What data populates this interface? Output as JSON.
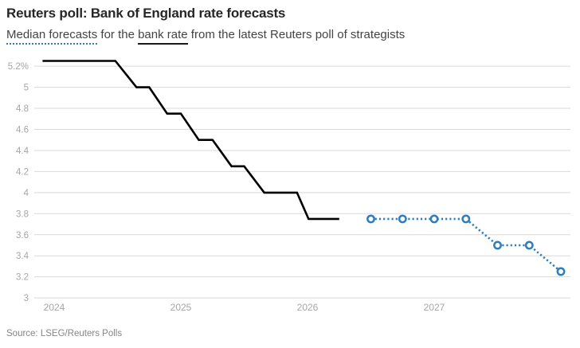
{
  "header": {
    "title": "Reuters poll: Bank of England rate forecasts",
    "subtitle_full": "Median forecasts for the bank rate from the latest Reuters poll of strategists",
    "subtitle_parts": {
      "median_forecasts": "Median forecasts",
      "mid": " for the ",
      "bank_rate": "bank rate",
      "tail": " from the latest Reuters poll of strategists"
    }
  },
  "footer": {
    "source": "Source: LSEG/Reuters Polls"
  },
  "colors": {
    "forecast_blue": "#2e7ebc",
    "history_black": "#000000",
    "gridline": "#d9d9d9",
    "axis_label": "#a6a6a6",
    "title_text": "#262626",
    "subtitle_text": "#444444",
    "source_text": "#858585"
  },
  "chart_data": {
    "type": "line",
    "title": "Reuters poll: Bank of England rate forecasts",
    "subtitle": "Median forecasts for the bank rate from the latest Reuters poll of strategists",
    "xlabel": "",
    "ylabel": "",
    "grid": true,
    "legend_position": "inline-in-subtitle",
    "x_axis": {
      "unit": "months since Jan 2024",
      "tick_labels": [
        "2024",
        "2025",
        "2026",
        "2027"
      ],
      "tick_months": [
        0,
        12,
        24,
        36
      ],
      "range_months": [
        -1.9,
        49.2
      ]
    },
    "y_axis": {
      "unit": "percent",
      "tick_labels": [
        "5.2%",
        "5",
        "4.8",
        "4.6",
        "4.4",
        "4.2",
        "4",
        "3.8",
        "3.6",
        "3.4",
        "3.2",
        "3"
      ],
      "tick_values": [
        5.2,
        5.0,
        4.8,
        4.6,
        4.4,
        4.2,
        4.0,
        3.8,
        3.6,
        3.4,
        3.2,
        3.0
      ],
      "range": [
        2.95,
        5.35
      ]
    },
    "series": [
      {
        "name": "Bank rate (historical)",
        "legend_text": "bank rate",
        "role": "history",
        "style": "solid",
        "markers": null,
        "color": "#000000",
        "points": [
          {
            "m": -1.1,
            "date": "2023-12",
            "v": 5.25
          },
          {
            "m": 5.8,
            "date": "2024-06",
            "v": 5.25
          },
          {
            "m": 7.8,
            "date": "2024-08",
            "v": 5.0
          },
          {
            "m": 9.0,
            "date": "2024-10",
            "v": 5.0
          },
          {
            "m": 10.7,
            "date": "2024-11",
            "v": 4.75
          },
          {
            "m": 12.0,
            "date": "2025-01",
            "v": 4.75
          },
          {
            "m": 13.7,
            "date": "2025-02",
            "v": 4.5
          },
          {
            "m": 15.0,
            "date": "2025-04",
            "v": 4.5
          },
          {
            "m": 16.8,
            "date": "2025-05",
            "v": 4.25
          },
          {
            "m": 18.0,
            "date": "2025-07",
            "v": 4.25
          },
          {
            "m": 19.9,
            "date": "2025-08",
            "v": 4.0
          },
          {
            "m": 23.0,
            "date": "2025-11",
            "v": 4.0
          },
          {
            "m": 24.1,
            "date": "2026-01",
            "v": 3.75
          },
          {
            "m": 27.0,
            "date": "2026-04",
            "v": 3.75
          }
        ]
      },
      {
        "name": "Median forecasts",
        "legend_text": "Median forecasts",
        "role": "forecast",
        "style": "dotted",
        "markers": "open-circle",
        "color": "#2e7ebc",
        "points": [
          {
            "m": 30,
            "date": "2026-07",
            "quarter": "Q3 2026",
            "v": 3.75
          },
          {
            "m": 33,
            "date": "2026-10",
            "quarter": "Q4 2026",
            "v": 3.75
          },
          {
            "m": 36,
            "date": "2027-01",
            "quarter": "Q1 2027",
            "v": 3.75
          },
          {
            "m": 39,
            "date": "2027-04",
            "quarter": "Q2 2027",
            "v": 3.75
          },
          {
            "m": 42,
            "date": "2027-07",
            "quarter": "Q3 2027",
            "v": 3.5
          },
          {
            "m": 45,
            "date": "2027-10",
            "quarter": "Q4 2027",
            "v": 3.5
          },
          {
            "m": 48,
            "date": "2028-01",
            "quarter": "Q1 2028",
            "v": 3.25
          }
        ]
      }
    ]
  }
}
